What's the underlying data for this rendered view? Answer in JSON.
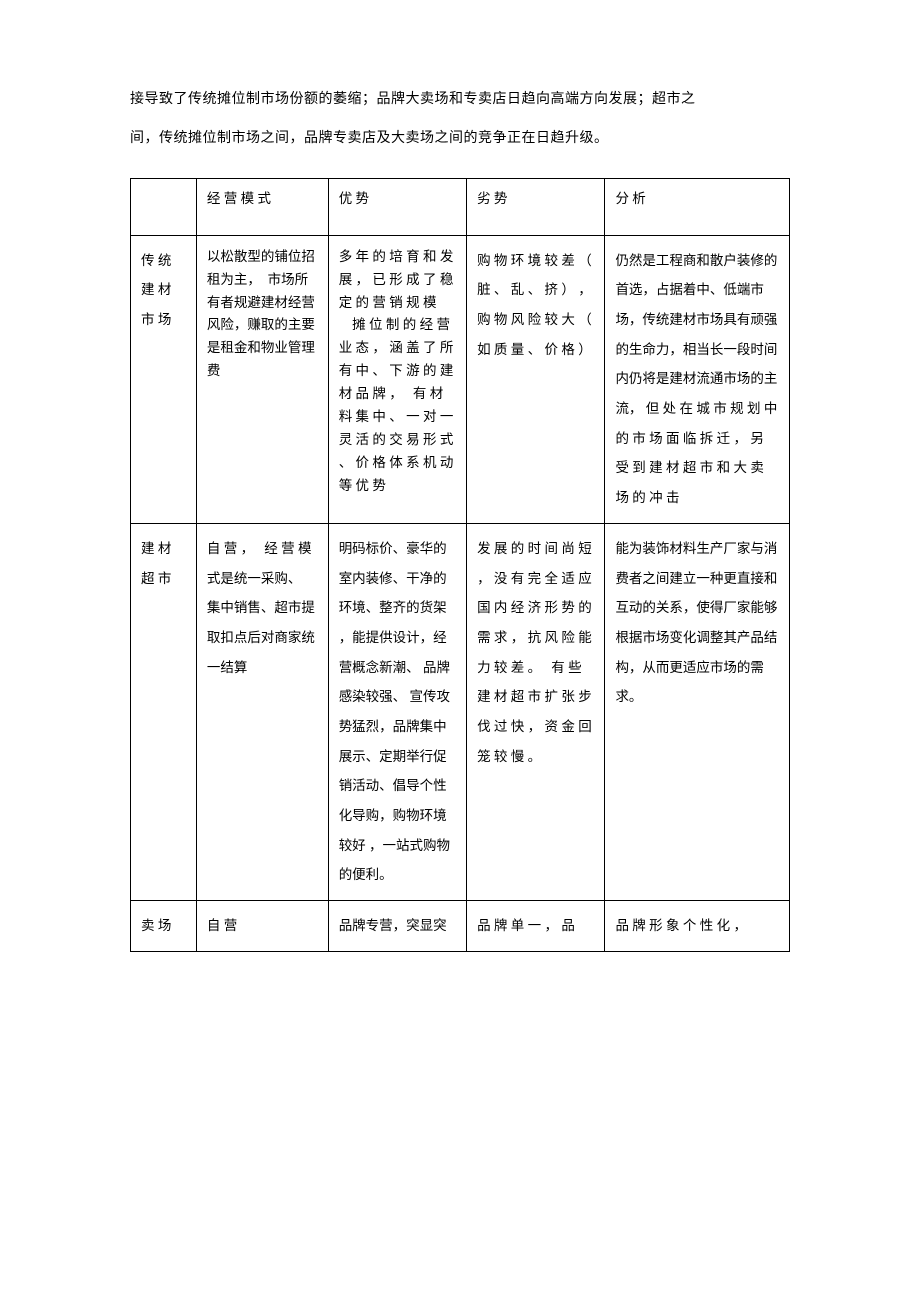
{
  "intro": {
    "line1": "接导致了传统摊位制市场份额的萎缩；品牌大卖场和专卖店日趋向高端方向发展；超市之",
    "line2": "间，传统摊位制市场之间，品牌专卖店及大卖场之间的竞争正在日趋升级。"
  },
  "table": {
    "headers": {
      "col1": "",
      "col2": "经 营 模 式",
      "col3": "优 势",
      "col4": "劣 势",
      "col5": "分 析"
    },
    "rows": [
      {
        "name": "传 统\n建 材\n市 场",
        "model": "以松散型的铺位招租为主，　市场所有者规避建材经营风险，赚取的主要是租金和物业管理费",
        "advantage": "多 年 的 培 育 和 发 展 ， 已 形 成 了 稳 定 的 营 销 规 模 　摊 位 制 的 经 营 业 态 ， 涵 盖 了 所 有 中 、 下 游 的 建 材 品 牌 ，　 有 材 料 集 中 、 一 对 一 灵 活 的 交 易 形 式 、 价 格 体 系 机 动 等 优 势",
        "disadvantage": "购 物 环 境 较 差 （ 脏 、 乱 、 挤 ） ， 购 物 风 险 较 大 （ 如 质 量 、 价 格 ）",
        "analysis": "仍然是工程商和散户装修的首选，占据着中、低端市场，传统建材市场具有顽强的生命力，相当长一段时间内仍将是建材流通市场的主流， 但 处 在 城 市 规 划 中 的 市 场 面 临 拆 迁 ， 另 受 到 建 材 超 市 和 大 卖 场 的 冲 击"
      },
      {
        "name": "建 材\n超 市",
        "model": "自 营 ，　 经 营 模式是统一采购、 集中销售、超市提取扣点后对商家统一结算",
        "advantage": "明码标价、豪华的室内装修、干净的环境、整齐的货架 ，能提供设计，经营概念新潮、 品牌感染较强、 宣传攻势猛烈，品牌集中展示、定期举行促销活动、倡导个性化导购，购物环境较好 ，一站式购物的便利。",
        "disadvantage": "发 展 的 时 间 尚 短 ， 没 有 完 全 适 应 国 内 经 济 形 势 的 需 求 ， 抗 风 险 能 力 较 差 。　 有 些 建 材 超 市 扩 张 步 伐 过 快 ， 资 金 回 笼 较 慢 。",
        "analysis": "能为装饰材料生产厂家与消费者之间建立一种更直接和互动的关系，使得厂家能够根据市场变化调整其产品结构，从而更适应市场的需求。"
      },
      {
        "name": "卖 场",
        "model": "自 营",
        "advantage": "品牌专营，突显突",
        "disadvantage": "品 牌 单 一 ， 品",
        "analysis": "品 牌 形 象 个 性 化 ，"
      }
    ]
  },
  "styling": {
    "background_color": "#ffffff",
    "text_color": "#000000",
    "border_color": "#000000",
    "intro_fontsize": 14,
    "table_fontsize": 13.5,
    "font_family": "SimSun"
  }
}
